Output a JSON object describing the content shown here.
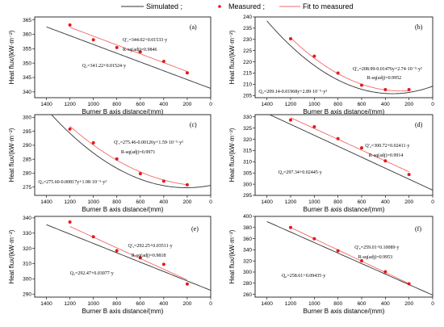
{
  "legend": {
    "simulated": "Simulated ;",
    "measured": "Measured ;",
    "fit": "Fit to measured",
    "colors": {
      "simulated": "#333333",
      "measured": "#e41a1c",
      "fit": "#f06a6a"
    }
  },
  "chart_data": [
    {
      "type": "scatter",
      "panel": "(a)",
      "xlabel": "Burner B axis distance/(mm)",
      "ylabel": "Heat flux/(kW·m⁻²)",
      "xlim": [
        1500,
        0
      ],
      "ylim": [
        338,
        366
      ],
      "xticks": [
        1400,
        1200,
        1000,
        800,
        600,
        400,
        200,
        0
      ],
      "yticks": [
        340,
        345,
        350,
        355,
        360,
        365
      ],
      "measured": {
        "x": [
          1200,
          1000,
          800,
          600,
          400,
          200
        ],
        "y": [
          363.2,
          358.1,
          355.4,
          353.9,
          350.6,
          346.6
        ]
      },
      "simulated": {
        "c0": 341.22,
        "c1": 0.01524,
        "c2": 0
      },
      "fit": {
        "c0": 344.02,
        "c1": 0.01533,
        "c2": 0
      },
      "fit_text": "Q'₁=344.02+0.01533·y",
      "r2_text": "R-sq(adj)=0.9846",
      "sim_text": "Q₁=341.22+0.01524·y"
    },
    {
      "type": "scatter",
      "panel": "(b)",
      "xlabel": "Burner B axis distance/(mm)",
      "ylabel": "Heat flux/(kW·m⁻²)",
      "xlim": [
        1500,
        0
      ],
      "ylim": [
        204,
        240
      ],
      "xticks": [
        1400,
        1200,
        1000,
        800,
        600,
        400,
        200,
        0
      ],
      "yticks": [
        205,
        210,
        215,
        220,
        225,
        230,
        235,
        240
      ],
      "measured": {
        "x": [
          1200,
          1000,
          800,
          600,
          400,
          200
        ],
        "y": [
          230.3,
          222.5,
          215.0,
          209.6,
          207.6,
          207.6
        ]
      },
      "simulated": {
        "c0": 209.14,
        "c1": -0.01968,
        "c2": 2.89e-05
      },
      "fit": {
        "c0": 208.99,
        "c1": -0.01476,
        "c2": 2.74e-05
      },
      "fit_text": "Q'₂=208.99-0.01476y+2.74·10⁻⁵·y²",
      "r2_text": "R-sq(adj)=0.9952",
      "sim_text": "Q₂=209.14-0.01968y+2.89·10⁻⁵·y²"
    },
    {
      "type": "scatter",
      "panel": "(c)",
      "xlabel": "Burner B axis distance/(mm)",
      "ylabel": "Heat flux/(kW·m⁻²)",
      "xlim": [
        1500,
        0
      ],
      "ylim": [
        272,
        301
      ],
      "xticks": [
        1400,
        1200,
        1000,
        800,
        600,
        400,
        200,
        0
      ],
      "yticks": [
        275,
        280,
        285,
        290,
        295,
        300
      ],
      "measured": {
        "x": [
          1200,
          1000,
          800,
          600,
          400,
          200
        ],
        "y": [
          295.8,
          290.9,
          285.1,
          279.8,
          277.1,
          275.8
        ]
      },
      "simulated": {
        "c0": 275.6,
        "c1": -0.00817,
        "c2": 1.98e-05
      },
      "fit": {
        "c0": 275.46,
        "c1": -0.00126,
        "c2": 1.59e-05
      },
      "fit_text": "Q'₃=275.46-0.00126y+1.59·10⁻⁵·y²",
      "r2_text": "R-sq(adj)=0.9971",
      "sim_text": "Q₃=275.60-0.00817y+1.98·10⁻⁵·y²"
    },
    {
      "type": "scatter",
      "panel": "(d)",
      "xlabel": "Burner B axis distance/(mm)",
      "ylabel": "Heat flux/(kW·m⁻²)",
      "xlim": [
        1500,
        0
      ],
      "ylim": [
        295,
        331
      ],
      "xticks": [
        1400,
        1200,
        1000,
        800,
        600,
        400,
        200,
        0
      ],
      "yticks": [
        295,
        300,
        305,
        310,
        315,
        320,
        325,
        330
      ],
      "measured": {
        "x": [
          1200,
          1000,
          800,
          600,
          400,
          200
        ],
        "y": [
          328.6,
          325.6,
          320.3,
          316.2,
          310.4,
          304.3
        ]
      },
      "simulated": {
        "c0": 297.34,
        "c1": 0.02445,
        "c2": 0
      },
      "fit": {
        "c0": 300.72,
        "c1": 0.02411,
        "c2": 0
      },
      "fit_text": "Q'₄=300.72+0.02411·y",
      "r2_text": "R-sq(adj)=0.9914",
      "sim_text": "Q₄=297.34+0.02445·y"
    },
    {
      "type": "scatter",
      "panel": "(e)",
      "xlabel": "Burner B axis distance/(mm)",
      "ylabel": "Heat flux/(kW·m⁻²)",
      "xlim": [
        1500,
        0
      ],
      "ylim": [
        288,
        341
      ],
      "xticks": [
        1400,
        1200,
        1000,
        800,
        600,
        400,
        200,
        0
      ],
      "yticks": [
        290,
        300,
        310,
        320,
        330,
        340
      ],
      "measured": {
        "x": [
          1200,
          1000,
          800,
          600,
          400,
          200
        ],
        "y": [
          337.3,
          327.6,
          318.5,
          313.8,
          309.5,
          296.6
        ]
      },
      "simulated": {
        "c0": 292.47,
        "c1": 0.03077,
        "c2": 0
      },
      "fit": {
        "c0": 292.25,
        "c1": 0.03511,
        "c2": 0
      },
      "fit_text": "Q'₅=292.25+0.03511·y",
      "r2_text": "R-sq(adj)=0.9818",
      "sim_text": "Q₅=292.47+0.03077·y"
    },
    {
      "type": "scatter",
      "panel": "(f)",
      "xlabel": "Burner B axis distance/(mm)",
      "ylabel": "Heat flux/(kW·m⁻²)",
      "xlim": [
        1500,
        0
      ],
      "ylim": [
        255,
        400
      ],
      "xticks": [
        1400,
        1200,
        1000,
        800,
        600,
        400,
        200,
        0
      ],
      "yticks": [
        260,
        280,
        300,
        320,
        340,
        360,
        380,
        400
      ],
      "measured": {
        "x": [
          1200,
          1000,
          800,
          600,
          400,
          200
        ],
        "y": [
          380.0,
          360.0,
          338.2,
          320.2,
          300.5,
          279.0
        ]
      },
      "simulated": {
        "c0": 258.61,
        "c1": 0.09435,
        "c2": 0
      },
      "fit": {
        "c0": 259.01,
        "c1": 0.10089,
        "c2": 0
      },
      "fit_text": "Q'₆=259.01+0.10089·y",
      "r2_text": "R-sq(adj)=0.9953",
      "sim_text": "Q₆=258.61+0.09435·y"
    }
  ]
}
